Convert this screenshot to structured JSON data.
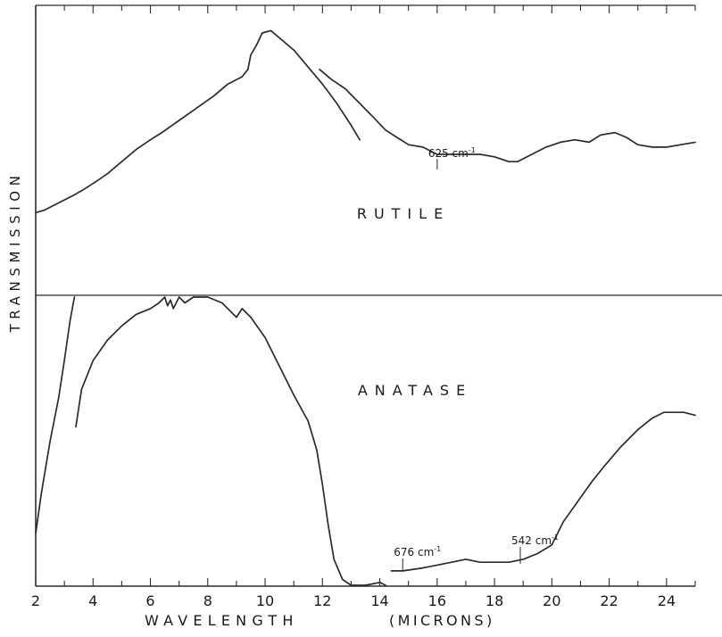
{
  "chart_data": {
    "type": "line",
    "ylabel": "TRANSMISSION",
    "xlabel_main": "WAVELENGTH",
    "xlabel_unit": "(MICRONS)",
    "xlim": [
      2,
      25
    ],
    "xticks": [
      2,
      4,
      6,
      8,
      10,
      12,
      14,
      16,
      18,
      20,
      22,
      24
    ],
    "grid": false,
    "line_color": "#2b2b2b",
    "panels": [
      {
        "name": "RUTILE",
        "segments": [
          [
            [
              2.0,
              0.19
            ],
            [
              2.3,
              0.2
            ],
            [
              2.8,
              0.23
            ],
            [
              3.3,
              0.26
            ],
            [
              3.6,
              0.28
            ],
            [
              4.0,
              0.31
            ],
            [
              4.5,
              0.35
            ],
            [
              5.0,
              0.4
            ],
            [
              5.5,
              0.45
            ],
            [
              6.0,
              0.49
            ],
            [
              6.4,
              0.52
            ],
            [
              7.0,
              0.57
            ],
            [
              7.6,
              0.62
            ],
            [
              8.2,
              0.67
            ],
            [
              8.7,
              0.72
            ],
            [
              9.2,
              0.75
            ],
            [
              9.4,
              0.78
            ],
            [
              9.5,
              0.84
            ],
            [
              9.7,
              0.88
            ],
            [
              9.9,
              0.93
            ],
            [
              10.2,
              0.94
            ],
            [
              10.5,
              0.91
            ],
            [
              11.0,
              0.86
            ],
            [
              11.5,
              0.79
            ],
            [
              12.0,
              0.72
            ],
            [
              12.5,
              0.64
            ],
            [
              13.0,
              0.55
            ],
            [
              13.3,
              0.49
            ]
          ],
          [
            [
              11.9,
              0.78
            ],
            [
              12.3,
              0.74
            ],
            [
              12.8,
              0.7
            ],
            [
              13.3,
              0.64
            ],
            [
              13.8,
              0.58
            ],
            [
              14.2,
              0.53
            ],
            [
              14.6,
              0.5
            ],
            [
              15.0,
              0.47
            ],
            [
              15.5,
              0.46
            ],
            [
              16.0,
              0.43
            ],
            [
              16.5,
              0.43
            ],
            [
              17.0,
              0.43
            ],
            [
              17.5,
              0.43
            ],
            [
              18.0,
              0.42
            ],
            [
              18.5,
              0.4
            ],
            [
              18.8,
              0.4
            ],
            [
              19.3,
              0.43
            ],
            [
              19.8,
              0.46
            ],
            [
              20.3,
              0.48
            ],
            [
              20.8,
              0.49
            ],
            [
              21.3,
              0.48
            ],
            [
              21.7,
              0.51
            ],
            [
              22.2,
              0.52
            ],
            [
              22.6,
              0.5
            ],
            [
              23.0,
              0.47
            ],
            [
              23.5,
              0.46
            ],
            [
              24.0,
              0.46
            ],
            [
              24.5,
              0.47
            ],
            [
              25.0,
              0.48
            ]
          ]
        ],
        "annotations": [
          {
            "x": 16.0,
            "text": "625 cm",
            "sup": "-1"
          }
        ]
      },
      {
        "name": "ANATASE",
        "segments": [
          [
            [
              2.0,
              0.18
            ],
            [
              2.2,
              0.32
            ],
            [
              2.5,
              0.5
            ],
            [
              2.8,
              0.65
            ],
            [
              3.0,
              0.78
            ],
            [
              3.2,
              0.92
            ],
            [
              3.35,
              1.0
            ]
          ],
          [
            [
              3.4,
              0.55
            ],
            [
              3.6,
              0.68
            ],
            [
              4.0,
              0.78
            ],
            [
              4.5,
              0.85
            ],
            [
              5.0,
              0.9
            ],
            [
              5.5,
              0.94
            ],
            [
              6.0,
              0.96
            ],
            [
              6.3,
              0.98
            ],
            [
              6.5,
              1.0
            ],
            [
              6.6,
              0.97
            ],
            [
              6.7,
              0.99
            ],
            [
              6.8,
              0.96
            ],
            [
              7.0,
              1.0
            ],
            [
              7.2,
              0.98
            ],
            [
              7.5,
              1.0
            ],
            [
              8.0,
              1.0
            ],
            [
              8.5,
              0.98
            ],
            [
              9.0,
              0.93
            ],
            [
              9.2,
              0.96
            ],
            [
              9.5,
              0.93
            ],
            [
              10.0,
              0.86
            ],
            [
              10.5,
              0.76
            ],
            [
              11.0,
              0.66
            ],
            [
              11.5,
              0.57
            ],
            [
              11.8,
              0.47
            ],
            [
              12.0,
              0.35
            ],
            [
              12.2,
              0.21
            ],
            [
              12.4,
              0.09
            ],
            [
              12.7,
              0.02
            ],
            [
              13.0,
              0.0
            ],
            [
              13.5,
              0.0
            ],
            [
              14.0,
              0.01
            ],
            [
              14.2,
              0.0
            ]
          ],
          [
            [
              14.4,
              0.05
            ],
            [
              14.8,
              0.05
            ],
            [
              15.5,
              0.06
            ],
            [
              16.0,
              0.07
            ],
            [
              16.5,
              0.08
            ],
            [
              17.0,
              0.09
            ],
            [
              17.5,
              0.08
            ],
            [
              18.0,
              0.08
            ],
            [
              18.5,
              0.08
            ],
            [
              19.0,
              0.09
            ],
            [
              19.5,
              0.11
            ],
            [
              20.0,
              0.14
            ],
            [
              20.4,
              0.22
            ],
            [
              20.9,
              0.29
            ],
            [
              21.4,
              0.36
            ],
            [
              21.8,
              0.41
            ],
            [
              22.4,
              0.48
            ],
            [
              23.0,
              0.54
            ],
            [
              23.5,
              0.58
            ],
            [
              23.9,
              0.6
            ],
            [
              24.3,
              0.6
            ],
            [
              24.6,
              0.6
            ],
            [
              25.0,
              0.59
            ]
          ]
        ],
        "annotations": [
          {
            "x": 14.8,
            "text": "676 cm",
            "sup": "-1"
          },
          {
            "x": 18.9,
            "text": "542 cm",
            "sup": "-1"
          }
        ]
      }
    ]
  }
}
